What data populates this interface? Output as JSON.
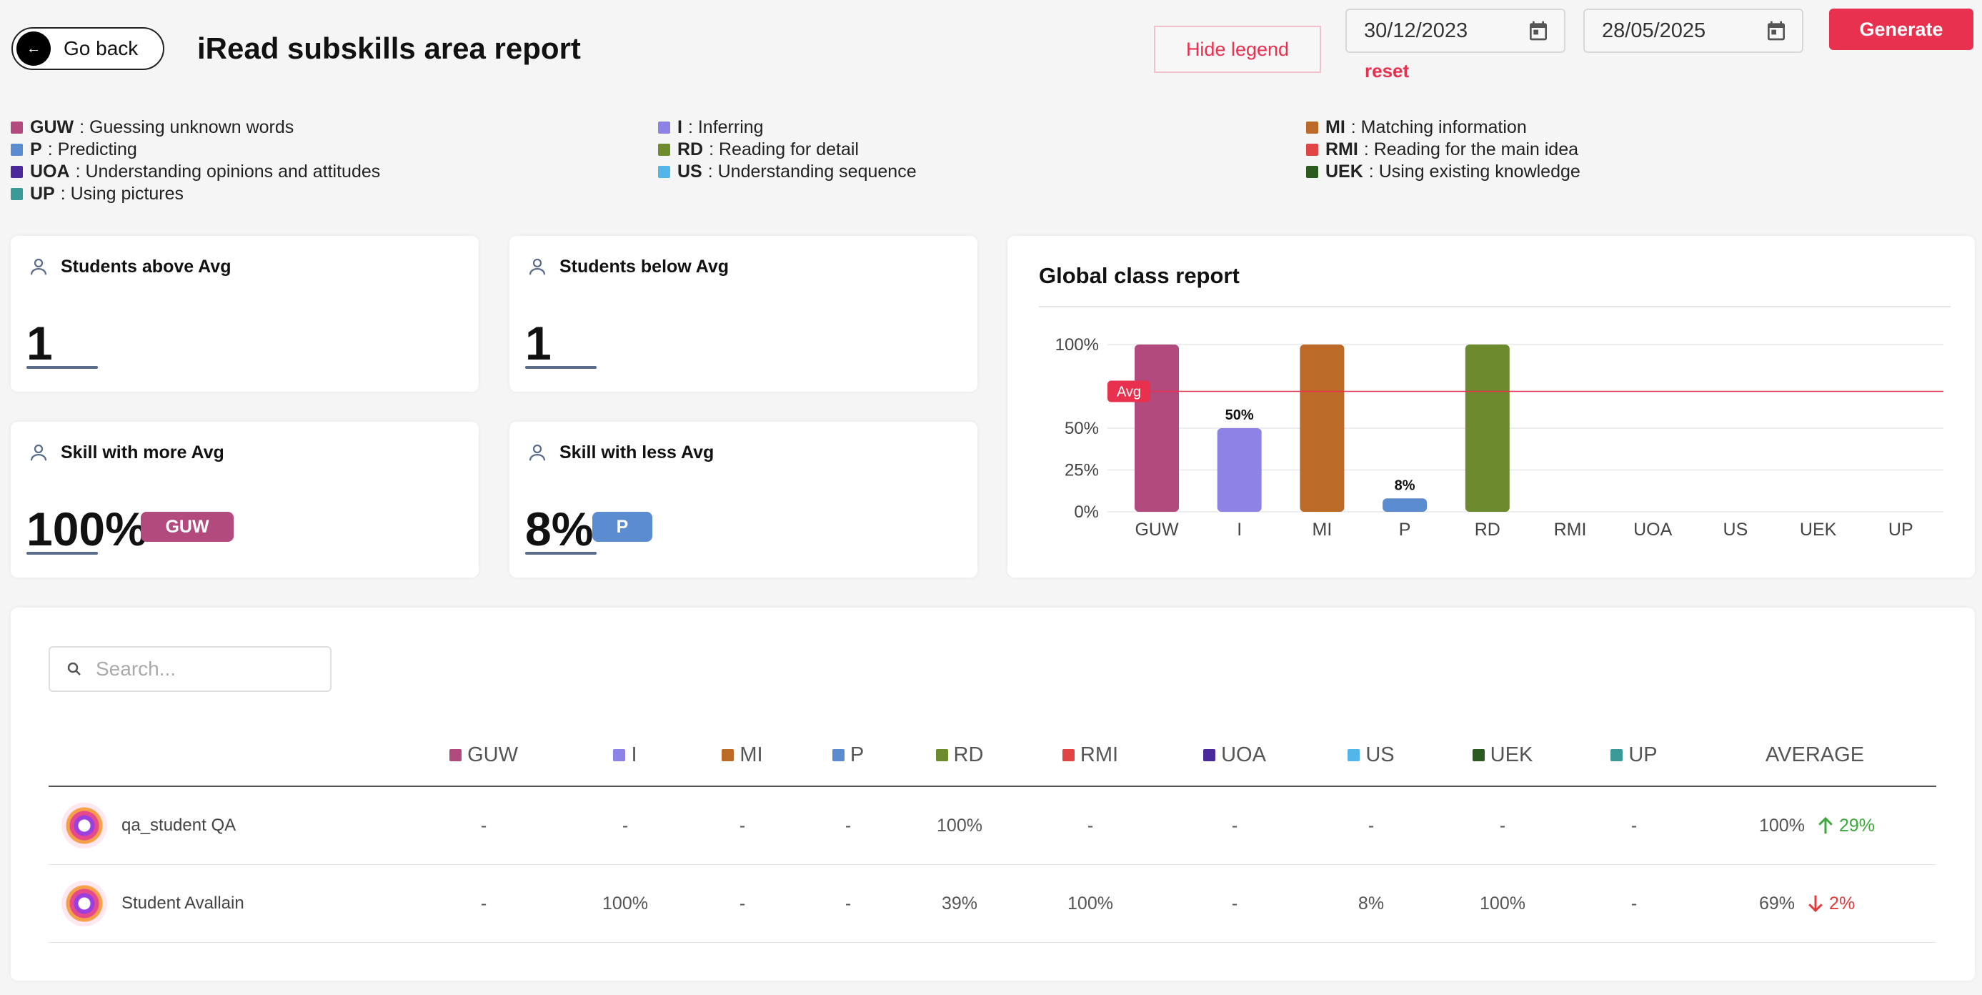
{
  "header": {
    "back_label": "Go back",
    "title": "iRead subskills area report",
    "hide_legend_label": "Hide legend",
    "date_from": "30/12/2023",
    "date_to": "28/05/2025",
    "reset_label": "reset",
    "generate_label": "Generate"
  },
  "legend": [
    {
      "code": "GUW",
      "label": ": Guessing unknown words",
      "color": "#b24a7e"
    },
    {
      "code": "P",
      "label": ": Predicting",
      "color": "#5b8ccf"
    },
    {
      "code": "UOA",
      "label": ": Understanding opinions and attitudes",
      "color": "#4a2a9a"
    },
    {
      "code": "UP",
      "label": ": Using pictures",
      "color": "#3a9a98"
    },
    {
      "code": "I",
      "label": ": Inferring",
      "color": "#8e82e6"
    },
    {
      "code": "RD",
      "label": ": Reading for detail",
      "color": "#6e8a2e"
    },
    {
      "code": "US",
      "label": ": Understanding sequence",
      "color": "#52b6ea"
    },
    {
      "code": "MI",
      "label": ": Matching information",
      "color": "#bb6a28"
    },
    {
      "code": "RMI",
      "label": ": Reading for the main idea",
      "color": "#e04545"
    },
    {
      "code": "UEK",
      "label": ": Using existing knowledge",
      "color": "#2d5a1e"
    }
  ],
  "cards": {
    "above_avg": {
      "title": "Students above Avg",
      "value": "1"
    },
    "below_avg": {
      "title": "Students below Avg",
      "value": "1"
    },
    "more_avg": {
      "title": "Skill with more Avg",
      "value": "100%",
      "badge": "GUW",
      "badge_color": "#b24a7e"
    },
    "less_avg": {
      "title": "Skill with less Avg",
      "value": "8%",
      "badge": "P",
      "badge_color": "#5b8ccf"
    }
  },
  "global_title": "Global class report",
  "chart_data": {
    "type": "bar",
    "categories": [
      "GUW",
      "I",
      "MI",
      "P",
      "RD",
      "RMI",
      "UOA",
      "US",
      "UEK",
      "UP"
    ],
    "values": [
      100,
      50,
      100,
      8,
      100,
      0,
      0,
      0,
      0,
      0
    ],
    "data_labels": [
      "",
      "50%",
      "",
      "8%",
      "",
      "",
      "",
      "",
      "",
      ""
    ],
    "colors": [
      "#b24a7e",
      "#8e82e6",
      "#bb6a28",
      "#5b8ccf",
      "#6e8a2e",
      "#e04545",
      "#4a2a9a",
      "#52b6ea",
      "#2d5a1e",
      "#3a9a98"
    ],
    "yticks": [
      "0%",
      "25%",
      "50%",
      "100%"
    ],
    "ytick_values": [
      0,
      25,
      50,
      100
    ],
    "ylim": [
      0,
      100
    ],
    "avg_label": "Avg",
    "avg_value": 72,
    "avg_color": "#e8304f",
    "grid": true
  },
  "search": {
    "placeholder": "Search..."
  },
  "table": {
    "columns": [
      {
        "code": "GUW",
        "color": "#b24a7e"
      },
      {
        "code": "I",
        "color": "#8e82e6"
      },
      {
        "code": "MI",
        "color": "#bb6a28"
      },
      {
        "code": "P",
        "color": "#5b8ccf"
      },
      {
        "code": "RD",
        "color": "#6e8a2e"
      },
      {
        "code": "RMI",
        "color": "#e04545"
      },
      {
        "code": "UOA",
        "color": "#4a2a9a"
      },
      {
        "code": "US",
        "color": "#52b6ea"
      },
      {
        "code": "UEK",
        "color": "#2d5a1e"
      },
      {
        "code": "UP",
        "color": "#3a9a98"
      }
    ],
    "average_header": "AVERAGE",
    "rows": [
      {
        "name": "qa_student QA",
        "values": [
          "-",
          "-",
          "-",
          "-",
          "100%",
          "-",
          "-",
          "-",
          "-",
          "-"
        ],
        "average": "100%",
        "trend": "29%",
        "trend_dir": "up"
      },
      {
        "name": "Student Avallain",
        "values": [
          "-",
          "100%",
          "-",
          "-",
          "39%",
          "100%",
          "-",
          "8%",
          "100%",
          "-"
        ],
        "average": "69%",
        "trend": "2%",
        "trend_dir": "down"
      }
    ]
  }
}
